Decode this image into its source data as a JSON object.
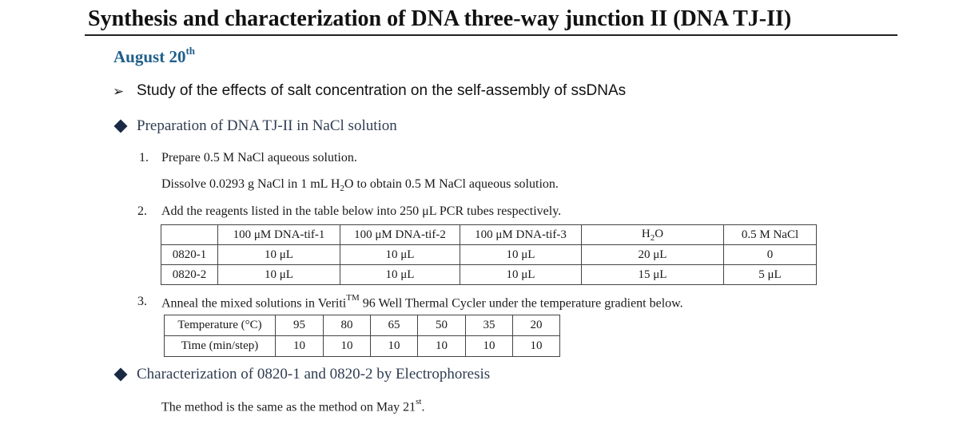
{
  "title": "Synthesis and characterization of DNA three-way junction II (DNA TJ-II)",
  "date": {
    "text": "August 20",
    "sup": "th"
  },
  "study_heading": "Study of the effects of salt concentration on the self-assembly of ssDNAs",
  "section1": "Preparation of DNA TJ-II in NaCl solution",
  "steps": [
    {
      "num": "1.",
      "text": "Prepare 0.5 M NaCl aqueous solution."
    },
    {
      "num": "2.",
      "text": "Add the reagents listed in the table below into 250 μL PCR tubes respectively."
    },
    {
      "num": "3.",
      "pre": "Anneal the mixed solutions in Veriti",
      "sup": "TM",
      "post": " 96 Well Thermal Cycler under the temperature gradient below."
    }
  ],
  "dissolve": {
    "pre": "Dissolve 0.0293 g NaCl in 1 mL H",
    "sub": "2",
    "post": "O to obtain 0.5 M NaCl aqueous solution."
  },
  "reagent_table": {
    "headers": [
      "",
      "100 μM DNA-tif-1",
      "100 μM DNA-tif-2",
      "100 μM DNA-tif-3",
      "H2O",
      "0.5 M NaCl"
    ],
    "rows": [
      [
        "0820-1",
        "10 μL",
        "10 μL",
        "10 μL",
        "20 μL",
        "0"
      ],
      [
        "0820-2",
        "10 μL",
        "10 μL",
        "10 μL",
        "15 μL",
        "5 μL"
      ]
    ]
  },
  "anneal_table": {
    "rows": [
      [
        "Temperature (°C)",
        "95",
        "80",
        "65",
        "50",
        "35",
        "20"
      ],
      [
        "Time (min/step)",
        "10",
        "10",
        "10",
        "10",
        "10",
        "10"
      ]
    ]
  },
  "section2": "Characterization of 0820-1 and 0820-2 by Electrophoresis",
  "last_line": {
    "text": "The method is the same as the method on May 21",
    "sup": "st",
    "end": "."
  }
}
